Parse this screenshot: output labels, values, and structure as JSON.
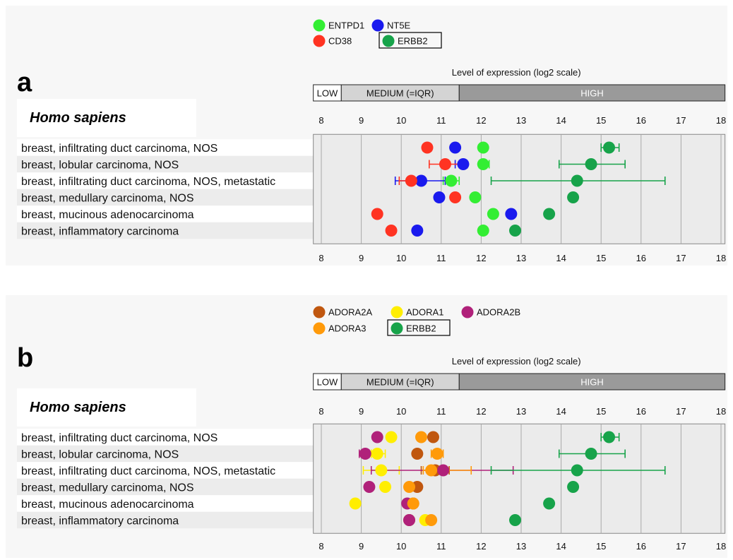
{
  "chart_data": [
    {
      "type": "scatter",
      "panel_label": "a",
      "title": "Level of expression (log2 scale)",
      "species": "Homo sapiens",
      "xlabel": "Level of expression (log2 scale)",
      "xlim": [
        7.8,
        18.1
      ],
      "xticks": [
        8,
        9,
        10,
        11,
        12,
        13,
        14,
        15,
        16,
        17,
        18
      ],
      "expression_bands": [
        {
          "label": "LOW",
          "range": [
            7.8,
            8.5
          ],
          "color": "#ffffff"
        },
        {
          "label": "MEDIUM (=IQR)",
          "range": [
            8.5,
            11.45
          ],
          "color": "#d4d4d4"
        },
        {
          "label": "HIGH",
          "range": [
            11.45,
            18.1
          ],
          "color": "#9a9a9a"
        }
      ],
      "categories": [
        "breast, infiltrating duct carcinoma, NOS",
        "breast, lobular carcinoma, NOS",
        "breast, infiltrating duct carcinoma, NOS, metastatic",
        "breast, medullary carcinoma, NOS",
        "breast, mucinous adenocarcinoma",
        "breast, inflammatory carcinoma"
      ],
      "legend_rows": [
        [
          "ENTPD1",
          "NT5E"
        ],
        [
          "CD38",
          "ERBB2"
        ]
      ],
      "highlighted_legend": "ERBB2",
      "series": [
        {
          "name": "ENTPD1",
          "color": "#33ee33",
          "values": [
            12.05,
            12.05,
            11.25,
            11.85,
            12.3,
            12.05
          ],
          "errors": [
            null,
            [
              11.95,
              12.2
            ],
            [
              11.05,
              11.45
            ],
            null,
            null,
            null
          ]
        },
        {
          "name": "NT5E",
          "color": "#1a1aee",
          "values": [
            11.35,
            11.55,
            10.5,
            10.95,
            12.75,
            10.4
          ],
          "errors": [
            null,
            [
              11.35,
              11.65
            ],
            [
              9.85,
              11.1
            ],
            null,
            null,
            null
          ]
        },
        {
          "name": "CD38",
          "color": "#ff3322",
          "values": [
            10.65,
            11.1,
            10.25,
            11.35,
            9.4,
            9.75
          ],
          "errors": [
            [
              10.55,
              10.75
            ],
            [
              10.7,
              11.45
            ],
            [
              9.95,
              10.55
            ],
            null,
            null,
            null
          ]
        },
        {
          "name": "ERBB2",
          "color": "#17a34a",
          "values": [
            15.2,
            14.75,
            14.4,
            14.3,
            13.7,
            12.85
          ],
          "errors": [
            [
              15.0,
              15.45
            ],
            [
              13.95,
              15.6
            ],
            [
              12.25,
              16.6
            ],
            null,
            null,
            null
          ]
        }
      ]
    },
    {
      "type": "scatter",
      "panel_label": "b",
      "title": "Level of expression (log2 scale)",
      "species": "Homo sapiens",
      "xlabel": "Level of expression (log2 scale)",
      "xlim": [
        7.8,
        18.1
      ],
      "xticks": [
        8,
        9,
        10,
        11,
        12,
        13,
        14,
        15,
        16,
        17,
        18
      ],
      "expression_bands": [
        {
          "label": "LOW",
          "range": [
            7.8,
            8.5
          ],
          "color": "#ffffff"
        },
        {
          "label": "MEDIUM (=IQR)",
          "range": [
            8.5,
            11.45
          ],
          "color": "#d4d4d4"
        },
        {
          "label": "HIGH",
          "range": [
            11.45,
            18.1
          ],
          "color": "#9a9a9a"
        }
      ],
      "categories": [
        "breast, infiltrating duct carcinoma, NOS",
        "breast, lobular carcinoma, NOS",
        "breast, infiltrating duct carcinoma, NOS, metastatic",
        "breast, medullary carcinoma, NOS",
        "breast, mucinous adenocarcinoma",
        "breast, inflammatory carcinoma"
      ],
      "legend_rows": [
        [
          "ADORA2A",
          "ADORA1",
          "ADORA2B"
        ],
        [
          "ADORA3",
          "ERBB2"
        ]
      ],
      "highlighted_legend": "ERBB2",
      "series": [
        {
          "name": "ADORA2A",
          "color": "#c0570f",
          "values": [
            10.8,
            10.4,
            10.85,
            10.4,
            10.3,
            10.2
          ],
          "errors": [
            null,
            null,
            [
              10.5,
              11.2
            ],
            null,
            null,
            null
          ]
        },
        {
          "name": "ADORA1",
          "color": "#ffee00",
          "values": [
            9.75,
            9.4,
            9.5,
            9.6,
            8.85,
            10.6
          ],
          "errors": [
            null,
            [
              9.25,
              9.6
            ],
            [
              9.05,
              9.95
            ],
            null,
            null,
            null
          ]
        },
        {
          "name": "ADORA2B",
          "color": "#b0217a",
          "values": [
            9.4,
            9.1,
            11.05,
            9.2,
            10.15,
            10.2
          ],
          "errors": [
            null,
            [
              8.95,
              9.2
            ],
            [
              9.25,
              12.8
            ],
            null,
            null,
            null
          ]
        },
        {
          "name": "ADORA3",
          "color": "#ff9a0a",
          "values": [
            10.5,
            10.9,
            10.75,
            10.2,
            10.3,
            10.75
          ],
          "errors": [
            null,
            [
              10.75,
              11.05
            ],
            [
              10.55,
              11.75
            ],
            null,
            null,
            null
          ]
        },
        {
          "name": "ERBB2",
          "color": "#17a34a",
          "values": [
            15.2,
            14.75,
            14.4,
            14.3,
            13.7,
            12.85
          ],
          "errors": [
            [
              15.0,
              15.45
            ],
            [
              13.95,
              15.6
            ],
            [
              12.25,
              16.6
            ],
            null,
            null,
            null
          ]
        }
      ]
    }
  ]
}
